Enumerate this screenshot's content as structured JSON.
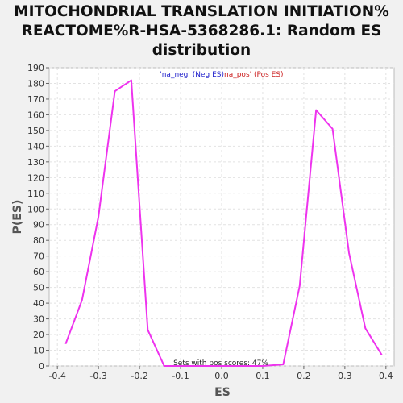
{
  "chart_data": {
    "type": "line",
    "title_lines": [
      "MITOCHONDRIAL TRANSLATION INITIATION%",
      "REACTOME%R-HSA-5368286.1: Random ES",
      "distribution"
    ],
    "xlabel": "ES",
    "ylabel": "P(ES)",
    "xlim": [
      -0.42,
      0.42
    ],
    "ylim": [
      0,
      190
    ],
    "xticks": [
      -0.4,
      -0.3,
      -0.2,
      -0.1,
      0.0,
      0.1,
      0.2,
      0.3,
      0.4
    ],
    "xtick_labels": [
      "-0.4",
      "-0.3",
      "-0.2",
      "-0.1",
      "0.0",
      "0.1",
      "0.2",
      "0.3",
      "0.4"
    ],
    "yticks": [
      0,
      10,
      20,
      30,
      40,
      50,
      60,
      70,
      80,
      90,
      100,
      110,
      120,
      130,
      140,
      150,
      160,
      170,
      180,
      190
    ],
    "grid": true,
    "legend": [
      {
        "label": "'na_neg' (Neg ES)",
        "color": "#2222cc"
      },
      {
        "label": "na_pos' (Pos ES)",
        "color": "#cc2222"
      }
    ],
    "annotation": "Sets with pos scores: 47%",
    "series": [
      {
        "color": "#ee33ee",
        "x": [
          -0.38,
          -0.34,
          -0.3,
          -0.26,
          -0.22,
          -0.18,
          -0.14,
          -0.1,
          -0.06,
          -0.02,
          0.02,
          0.06,
          0.1,
          0.15,
          0.19,
          0.23,
          0.27,
          0.31,
          0.35,
          0.39
        ],
        "y": [
          14,
          42,
          95,
          175,
          182,
          23,
          0,
          0,
          0,
          0,
          0,
          0,
          0,
          1,
          51,
          163,
          151,
          72,
          24,
          7
        ]
      }
    ]
  }
}
